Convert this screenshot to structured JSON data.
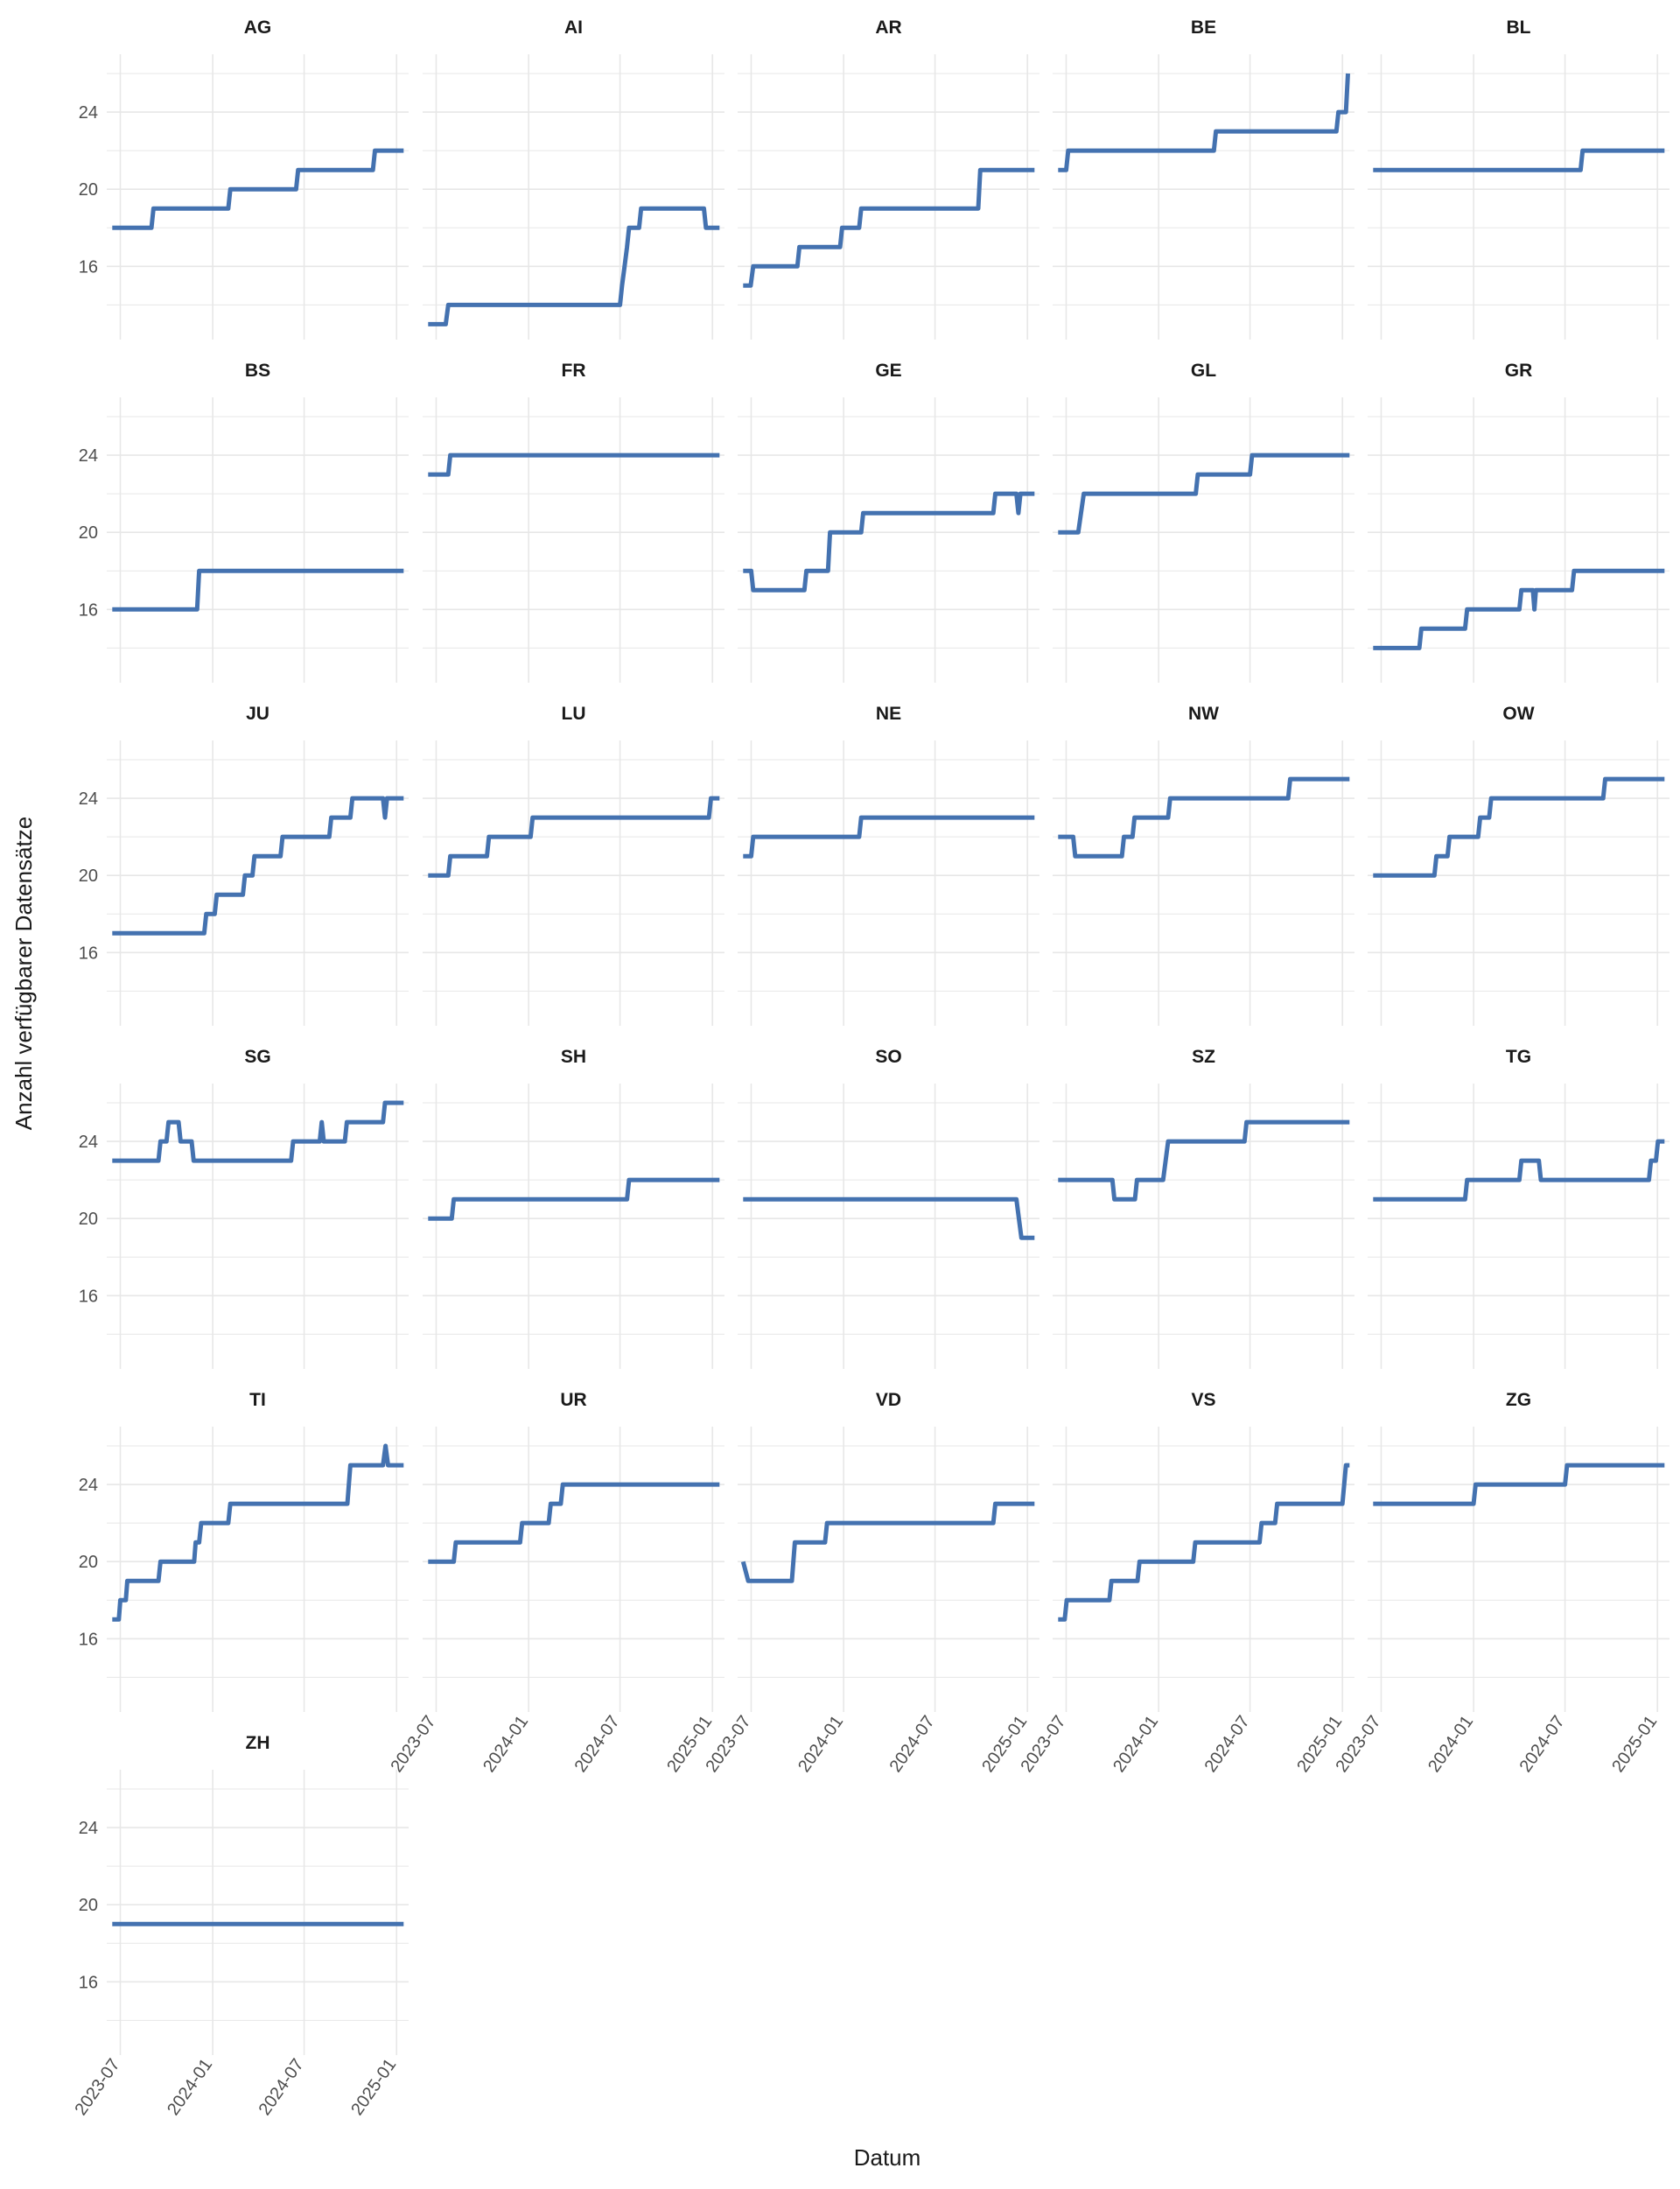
{
  "xlabel": "Datum",
  "ylabel": "Anzahl verfügbarer Datensätze",
  "colors": {
    "line": "#4472b0",
    "grid": "#e7e7e7",
    "text": "#4d4d4d",
    "strip": "#1a1a1a"
  },
  "chart_data": {
    "type": "line",
    "facets": "wrap",
    "xlabel": "Datum",
    "ylabel": "Anzahl verfügbarer Datensätze",
    "xlim": [
      "2023-06-04",
      "2025-01-25"
    ],
    "ylim": [
      12.2,
      27.0
    ],
    "x_ticks": [
      "2023-07",
      "2024-01",
      "2024-07",
      "2025-01"
    ],
    "y_ticks": [
      16,
      20,
      24
    ],
    "grid": true,
    "series": [
      {
        "name": "AG",
        "points": [
          [
            "2023-06-15",
            18
          ],
          [
            "2023-09-01",
            18
          ],
          [
            "2023-09-05",
            19
          ],
          [
            "2024-02-01",
            19
          ],
          [
            "2024-02-05",
            20
          ],
          [
            "2024-06-15",
            20
          ],
          [
            "2024-06-19",
            21
          ],
          [
            "2024-11-15",
            21
          ],
          [
            "2024-11-19",
            22
          ],
          [
            "2025-01-15",
            22
          ]
        ]
      },
      {
        "name": "AI",
        "points": [
          [
            "2023-06-15",
            13
          ],
          [
            "2023-07-20",
            13
          ],
          [
            "2023-07-25",
            14
          ],
          [
            "2024-07-01",
            14
          ],
          [
            "2024-07-05",
            15
          ],
          [
            "2024-07-10",
            16
          ],
          [
            "2024-07-15",
            17
          ],
          [
            "2024-07-19",
            18
          ],
          [
            "2024-08-08",
            18
          ],
          [
            "2024-08-12",
            19
          ],
          [
            "2024-12-15",
            19
          ],
          [
            "2024-12-19",
            18
          ],
          [
            "2025-01-15",
            18
          ]
        ]
      },
      {
        "name": "AR",
        "points": [
          [
            "2023-06-15",
            15
          ],
          [
            "2023-06-30",
            15
          ],
          [
            "2023-07-05",
            16
          ],
          [
            "2023-10-01",
            16
          ],
          [
            "2023-10-05",
            17
          ],
          [
            "2023-12-25",
            17
          ],
          [
            "2023-12-29",
            18
          ],
          [
            "2024-02-01",
            18
          ],
          [
            "2024-02-05",
            19
          ],
          [
            "2024-09-25",
            19
          ],
          [
            "2024-09-29",
            21
          ],
          [
            "2025-01-15",
            21
          ]
        ]
      },
      {
        "name": "BE",
        "points": [
          [
            "2023-06-15",
            21
          ],
          [
            "2023-07-01",
            21
          ],
          [
            "2023-07-05",
            22
          ],
          [
            "2024-04-20",
            22
          ],
          [
            "2024-04-24",
            23
          ],
          [
            "2024-12-20",
            23
          ],
          [
            "2024-12-24",
            24
          ],
          [
            "2025-01-08",
            24
          ],
          [
            "2025-01-12",
            26
          ]
        ]
      },
      {
        "name": "BL",
        "points": [
          [
            "2023-06-15",
            21
          ],
          [
            "2024-08-01",
            21
          ],
          [
            "2024-08-05",
            22
          ],
          [
            "2025-01-15",
            22
          ]
        ]
      },
      {
        "name": "BS",
        "points": [
          [
            "2023-06-15",
            16
          ],
          [
            "2023-12-01",
            16
          ],
          [
            "2023-12-05",
            18
          ],
          [
            "2025-01-15",
            18
          ]
        ]
      },
      {
        "name": "FR",
        "points": [
          [
            "2023-06-15",
            23
          ],
          [
            "2023-07-25",
            23
          ],
          [
            "2023-07-29",
            24
          ],
          [
            "2025-01-15",
            24
          ]
        ]
      },
      {
        "name": "GE",
        "points": [
          [
            "2023-06-15",
            18
          ],
          [
            "2023-07-01",
            18
          ],
          [
            "2023-07-05",
            17
          ],
          [
            "2023-10-15",
            17
          ],
          [
            "2023-10-19",
            18
          ],
          [
            "2023-12-01",
            18
          ],
          [
            "2023-12-05",
            20
          ],
          [
            "2024-02-05",
            20
          ],
          [
            "2024-02-09",
            21
          ],
          [
            "2024-10-25",
            21
          ],
          [
            "2024-10-29",
            22
          ],
          [
            "2024-12-10",
            22
          ],
          [
            "2024-12-14",
            21
          ],
          [
            "2024-12-18",
            22
          ],
          [
            "2025-01-15",
            22
          ]
        ]
      },
      {
        "name": "GL",
        "points": [
          [
            "2023-06-15",
            20
          ],
          [
            "2023-07-25",
            20
          ],
          [
            "2023-08-05",
            22
          ],
          [
            "2024-03-15",
            22
          ],
          [
            "2024-03-19",
            23
          ],
          [
            "2024-07-01",
            23
          ],
          [
            "2024-07-05",
            24
          ],
          [
            "2025-01-15",
            24
          ]
        ]
      },
      {
        "name": "GR",
        "points": [
          [
            "2023-06-15",
            14
          ],
          [
            "2023-09-15",
            14
          ],
          [
            "2023-09-19",
            15
          ],
          [
            "2023-12-15",
            15
          ],
          [
            "2023-12-19",
            16
          ],
          [
            "2024-04-01",
            16
          ],
          [
            "2024-04-05",
            17
          ],
          [
            "2024-04-28",
            17
          ],
          [
            "2024-05-01",
            16
          ],
          [
            "2024-05-04",
            17
          ],
          [
            "2024-07-15",
            17
          ],
          [
            "2024-07-19",
            18
          ],
          [
            "2025-01-15",
            18
          ]
        ]
      },
      {
        "name": "JU",
        "points": [
          [
            "2023-06-15",
            17
          ],
          [
            "2023-12-15",
            17
          ],
          [
            "2023-12-19",
            18
          ],
          [
            "2024-01-05",
            18
          ],
          [
            "2024-01-09",
            19
          ],
          [
            "2024-03-01",
            19
          ],
          [
            "2024-03-05",
            20
          ],
          [
            "2024-03-20",
            20
          ],
          [
            "2024-03-24",
            21
          ],
          [
            "2024-05-15",
            21
          ],
          [
            "2024-05-19",
            22
          ],
          [
            "2024-08-20",
            22
          ],
          [
            "2024-08-24",
            23
          ],
          [
            "2024-10-01",
            23
          ],
          [
            "2024-10-05",
            24
          ],
          [
            "2024-12-05",
            24
          ],
          [
            "2024-12-09",
            23
          ],
          [
            "2024-12-13",
            24
          ],
          [
            "2025-01-15",
            24
          ]
        ]
      },
      {
        "name": "LU",
        "points": [
          [
            "2023-06-15",
            20
          ],
          [
            "2023-07-25",
            20
          ],
          [
            "2023-07-29",
            21
          ],
          [
            "2023-10-10",
            21
          ],
          [
            "2023-10-14",
            22
          ],
          [
            "2024-01-05",
            22
          ],
          [
            "2024-01-09",
            23
          ],
          [
            "2024-12-25",
            23
          ],
          [
            "2024-12-29",
            24
          ],
          [
            "2025-01-15",
            24
          ]
        ]
      },
      {
        "name": "NE",
        "points": [
          [
            "2023-06-15",
            21
          ],
          [
            "2023-07-01",
            21
          ],
          [
            "2023-07-05",
            22
          ],
          [
            "2024-02-01",
            22
          ],
          [
            "2024-02-05",
            23
          ],
          [
            "2025-01-15",
            23
          ]
        ]
      },
      {
        "name": "NW",
        "points": [
          [
            "2023-06-15",
            22
          ],
          [
            "2023-07-15",
            22
          ],
          [
            "2023-07-19",
            21
          ],
          [
            "2023-10-20",
            21
          ],
          [
            "2023-10-24",
            22
          ],
          [
            "2023-11-10",
            22
          ],
          [
            "2023-11-14",
            23
          ],
          [
            "2024-01-20",
            23
          ],
          [
            "2024-01-24",
            24
          ],
          [
            "2024-09-15",
            24
          ],
          [
            "2024-09-19",
            25
          ],
          [
            "2025-01-15",
            25
          ]
        ]
      },
      {
        "name": "OW",
        "points": [
          [
            "2023-06-15",
            20
          ],
          [
            "2023-10-15",
            20
          ],
          [
            "2023-10-19",
            21
          ],
          [
            "2023-11-10",
            21
          ],
          [
            "2023-11-14",
            22
          ],
          [
            "2024-01-10",
            22
          ],
          [
            "2024-01-14",
            23
          ],
          [
            "2024-02-01",
            23
          ],
          [
            "2024-02-05",
            24
          ],
          [
            "2024-09-15",
            24
          ],
          [
            "2024-09-19",
            25
          ],
          [
            "2025-01-15",
            25
          ]
        ]
      },
      {
        "name": "SG",
        "points": [
          [
            "2023-06-15",
            23
          ],
          [
            "2023-09-15",
            23
          ],
          [
            "2023-09-19",
            24
          ],
          [
            "2023-10-01",
            24
          ],
          [
            "2023-10-05",
            25
          ],
          [
            "2023-10-25",
            25
          ],
          [
            "2023-10-29",
            24
          ],
          [
            "2023-11-20",
            24
          ],
          [
            "2023-11-24",
            23
          ],
          [
            "2024-06-05",
            23
          ],
          [
            "2024-06-09",
            24
          ],
          [
            "2024-08-01",
            24
          ],
          [
            "2024-08-05",
            25
          ],
          [
            "2024-08-09",
            24
          ],
          [
            "2024-09-20",
            24
          ],
          [
            "2024-09-24",
            25
          ],
          [
            "2024-12-05",
            25
          ],
          [
            "2024-12-09",
            26
          ],
          [
            "2025-01-15",
            26
          ]
        ]
      },
      {
        "name": "SH",
        "points": [
          [
            "2023-06-15",
            20
          ],
          [
            "2023-08-01",
            20
          ],
          [
            "2023-08-05",
            21
          ],
          [
            "2024-07-15",
            21
          ],
          [
            "2024-07-19",
            22
          ],
          [
            "2025-01-15",
            22
          ]
        ]
      },
      {
        "name": "SO",
        "points": [
          [
            "2023-06-15",
            21
          ],
          [
            "2024-12-10",
            21
          ],
          [
            "2024-12-20",
            19
          ],
          [
            "2025-01-15",
            19
          ]
        ]
      },
      {
        "name": "SZ",
        "points": [
          [
            "2023-06-15",
            22
          ],
          [
            "2023-10-01",
            22
          ],
          [
            "2023-10-05",
            21
          ],
          [
            "2023-11-15",
            21
          ],
          [
            "2023-11-19",
            22
          ],
          [
            "2024-01-10",
            22
          ],
          [
            "2024-01-20",
            24
          ],
          [
            "2024-06-20",
            24
          ],
          [
            "2024-06-24",
            25
          ],
          [
            "2025-01-15",
            25
          ]
        ]
      },
      {
        "name": "TG",
        "points": [
          [
            "2023-06-15",
            21
          ],
          [
            "2023-12-15",
            21
          ],
          [
            "2023-12-19",
            22
          ],
          [
            "2024-04-01",
            22
          ],
          [
            "2024-04-05",
            23
          ],
          [
            "2024-05-10",
            23
          ],
          [
            "2024-05-14",
            22
          ],
          [
            "2024-12-15",
            22
          ],
          [
            "2024-12-19",
            23
          ],
          [
            "2024-12-29",
            23
          ],
          [
            "2025-01-02",
            24
          ],
          [
            "2025-01-15",
            24
          ]
        ]
      },
      {
        "name": "TI",
        "points": [
          [
            "2023-06-15",
            17
          ],
          [
            "2023-06-28",
            17
          ],
          [
            "2023-07-01",
            18
          ],
          [
            "2023-07-12",
            18
          ],
          [
            "2023-07-15",
            19
          ],
          [
            "2023-09-15",
            19
          ],
          [
            "2023-09-19",
            20
          ],
          [
            "2023-11-25",
            20
          ],
          [
            "2023-11-28",
            21
          ],
          [
            "2023-12-05",
            21
          ],
          [
            "2023-12-09",
            22
          ],
          [
            "2024-02-01",
            22
          ],
          [
            "2024-02-05",
            23
          ],
          [
            "2024-09-25",
            23
          ],
          [
            "2024-10-01",
            25
          ],
          [
            "2024-12-05",
            25
          ],
          [
            "2024-12-10",
            26
          ],
          [
            "2024-12-15",
            25
          ],
          [
            "2025-01-15",
            25
          ]
        ]
      },
      {
        "name": "UR",
        "points": [
          [
            "2023-06-15",
            20
          ],
          [
            "2023-08-05",
            20
          ],
          [
            "2023-08-09",
            21
          ],
          [
            "2023-12-15",
            21
          ],
          [
            "2023-12-19",
            22
          ],
          [
            "2024-02-10",
            22
          ],
          [
            "2024-02-14",
            23
          ],
          [
            "2024-03-05",
            23
          ],
          [
            "2024-03-09",
            24
          ],
          [
            "2025-01-15",
            24
          ]
        ]
      },
      {
        "name": "VD",
        "points": [
          [
            "2023-06-15",
            20
          ],
          [
            "2023-06-25",
            19
          ],
          [
            "2023-09-20",
            19
          ],
          [
            "2023-09-26",
            21
          ],
          [
            "2023-11-25",
            21
          ],
          [
            "2023-11-29",
            22
          ],
          [
            "2024-10-25",
            22
          ],
          [
            "2024-10-29",
            23
          ],
          [
            "2025-01-15",
            23
          ]
        ]
      },
      {
        "name": "VS",
        "points": [
          [
            "2023-06-15",
            17
          ],
          [
            "2023-06-28",
            17
          ],
          [
            "2023-07-02",
            18
          ],
          [
            "2023-09-25",
            18
          ],
          [
            "2023-09-29",
            19
          ],
          [
            "2023-11-20",
            19
          ],
          [
            "2023-11-24",
            20
          ],
          [
            "2024-03-10",
            20
          ],
          [
            "2024-03-14",
            21
          ],
          [
            "2024-07-20",
            21
          ],
          [
            "2024-07-24",
            22
          ],
          [
            "2024-08-20",
            22
          ],
          [
            "2024-08-24",
            23
          ],
          [
            "2025-01-01",
            23
          ],
          [
            "2025-01-08",
            25
          ],
          [
            "2025-01-15",
            25
          ]
        ]
      },
      {
        "name": "ZG",
        "points": [
          [
            "2023-06-15",
            23
          ],
          [
            "2024-01-01",
            23
          ],
          [
            "2024-01-05",
            24
          ],
          [
            "2024-07-01",
            24
          ],
          [
            "2024-07-05",
            25
          ],
          [
            "2025-01-15",
            25
          ]
        ]
      },
      {
        "name": "ZH",
        "points": [
          [
            "2023-06-15",
            19
          ],
          [
            "2025-01-15",
            19
          ]
        ]
      }
    ]
  }
}
